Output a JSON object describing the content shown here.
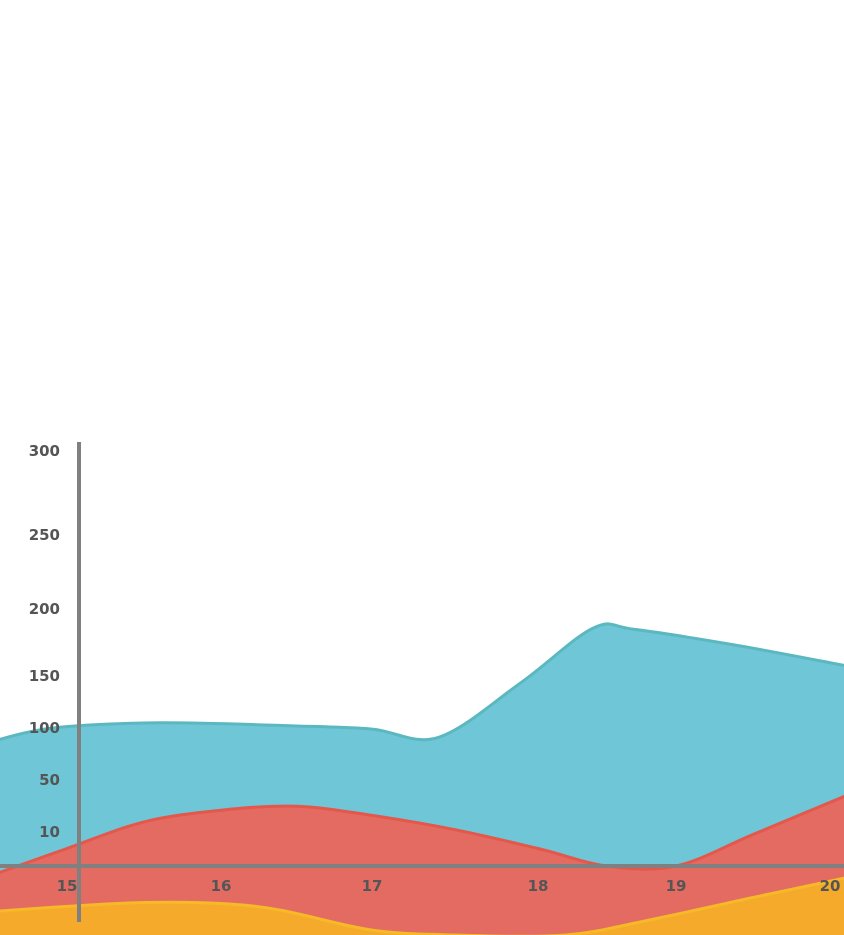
{
  "chart_data": {
    "type": "area",
    "title": "",
    "xlabel": "",
    "ylabel": "",
    "x_ticks": [
      "15",
      "16",
      "17",
      "18",
      "19",
      "20"
    ],
    "y_ticks": [
      "300",
      "250",
      "200",
      "150",
      "100",
      "50",
      "10"
    ],
    "grid": false,
    "legend": "none",
    "series": [
      {
        "color": "#6ec6d6",
        "stroke": "#5bb8c0",
        "x": [
          14.5,
          14.9,
          15.6,
          16.5,
          17.0,
          17.4,
          17.9,
          18.4,
          18.7,
          19.4,
          20.1
        ],
        "values": [
          87,
          99,
          104,
          101,
          98,
          90,
          143,
          185,
          184,
          172,
          157
        ]
      },
      {
        "color": "#e36b62",
        "stroke": "#e4574a",
        "x": [
          14.5,
          15.0,
          15.5,
          16.0,
          16.5,
          17.0,
          17.5,
          18.0,
          18.5,
          19.0,
          19.5,
          20.1
        ],
        "values": [
          -8,
          5,
          17,
          26,
          29,
          22,
          11,
          5,
          0,
          0,
          9,
          37
        ]
      },
      {
        "color": "#f5aa2c",
        "stroke": "#f6b928",
        "x": [
          14.5,
          15.0,
          15.5,
          16.0,
          16.4,
          17.0,
          17.5,
          18.2,
          18.8,
          19.5,
          20.1
        ],
        "values": [
          -46,
          -41,
          -37,
          -38,
          -45,
          -65,
          -70,
          -70,
          -55,
          -32,
          -12
        ]
      }
    ]
  }
}
